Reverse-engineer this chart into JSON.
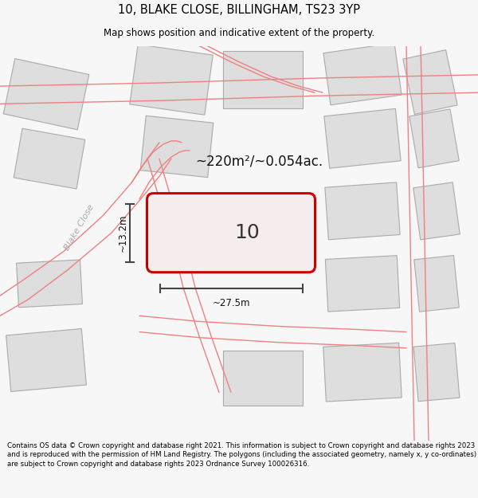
{
  "title": "10, BLAKE CLOSE, BILLINGHAM, TS23 3YP",
  "subtitle": "Map shows position and indicative extent of the property.",
  "footer": "Contains OS data © Crown copyright and database right 2021. This information is subject to Crown copyright and database rights 2023 and is reproduced with the permission of HM Land Registry. The polygons (including the associated geometry, namely x, y co-ordinates) are subject to Crown copyright and database rights 2023 Ordnance Survey 100026316.",
  "area_label": "~220m²/~0.054ac.",
  "width_label": "~27.5m",
  "height_label": "~13.2m",
  "number_label": "10",
  "street_label": "Blake Close",
  "bg_color": "#f7f7f7",
  "map_bg": "#ffffff",
  "building_fill": "#dedede",
  "building_edge": "#aaaaaa",
  "road_color": "#f08080",
  "highlight_fill": "#f5eded",
  "highlight_edge": "#cc0000",
  "dim_line_color": "#444444",
  "title_fontsize": 10.5,
  "subtitle_fontsize": 8.5,
  "footer_fontsize": 6.2,
  "number_fontsize": 18,
  "area_fontsize": 12,
  "dim_fontsize": 8.5,
  "street_fontsize": 8
}
